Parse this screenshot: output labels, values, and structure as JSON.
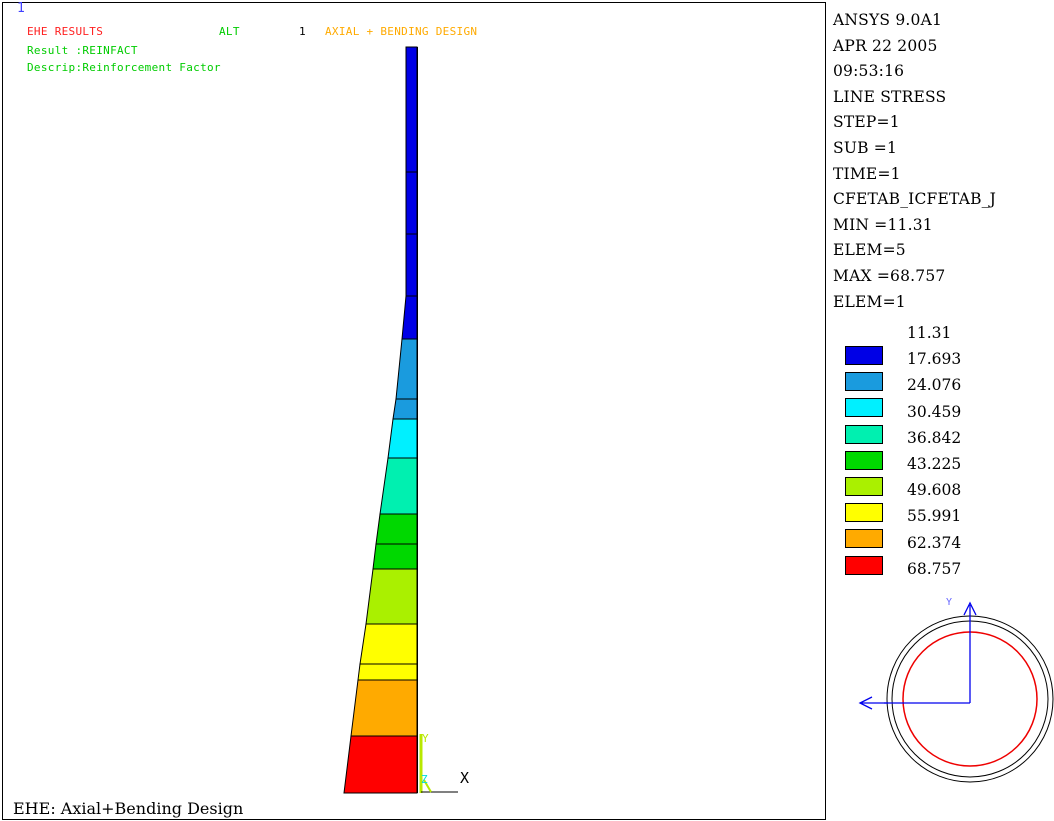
{
  "header": {
    "window_number": "1",
    "title": "EHE RESULTS",
    "alt_label": "ALT",
    "alt_number": "1",
    "design_label": "AXIAL + BENDING DESIGN",
    "result_line": "Result :REINFACT",
    "descrip_line": "Descrip:Reinforcement Factor"
  },
  "info_lines": [
    "ANSYS 9.0A1",
    "APR 22 2005",
    "09:53:16",
    "LINE STRESS",
    "STEP=1",
    "SUB =1",
    "TIME=1",
    "CFETAB_ICFETAB_J",
    "MIN =11.31",
    "ELEM=5",
    "MAX =68.757",
    "ELEM=1"
  ],
  "legend": {
    "labels": [
      "11.31",
      "17.693",
      "24.076",
      "30.459",
      "36.842",
      "43.225",
      "49.608",
      "55.991",
      "62.374",
      "68.757"
    ],
    "colors": [
      "#0000e6",
      "#1a9bde",
      "#00f0ff",
      "#00f0b0",
      "#00d800",
      "#aaf000",
      "#ffff00",
      "#ffaa00",
      "#ff0000"
    ]
  },
  "axes": {
    "triad_y": "Y",
    "triad_z": "Z",
    "triad_x": "X",
    "section_y": "Y",
    "section_z": "Z"
  },
  "caption": "EHE: Axial+Bending Design"
}
